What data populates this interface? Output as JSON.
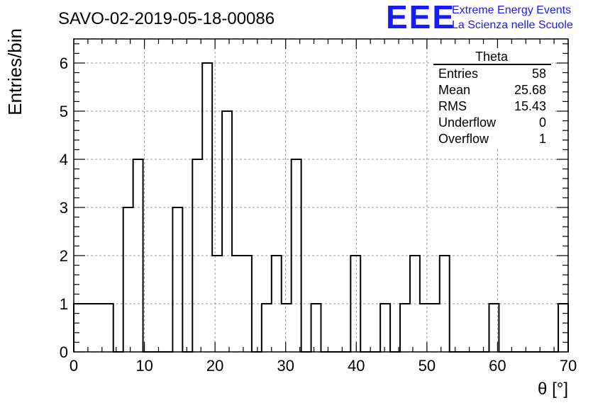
{
  "chart_data": {
    "type": "bar",
    "title": "SAVO-02-2019-05-18-00086",
    "xlabel": "θ [°]",
    "ylabel": "Entries/bin",
    "xlim": [
      0,
      70
    ],
    "ylim": [
      0,
      6.5
    ],
    "x_ticks": [
      0,
      10,
      20,
      30,
      40,
      50,
      60,
      70
    ],
    "y_ticks": [
      0,
      1,
      2,
      3,
      4,
      5,
      6
    ],
    "grid": true,
    "bin_width": 1.4,
    "bin_contents": [
      1,
      1,
      1,
      1,
      0,
      3,
      4,
      0,
      0,
      0,
      3,
      0,
      4,
      6,
      2,
      5,
      2,
      2,
      0,
      1,
      2,
      1,
      4,
      0,
      1,
      0,
      0,
      0,
      2,
      0,
      0,
      1,
      0,
      1,
      2,
      1,
      1,
      2,
      0,
      0,
      0,
      0,
      1,
      0,
      0,
      0,
      0,
      0,
      0,
      1
    ]
  },
  "stats_box": {
    "title": "Theta",
    "rows": [
      {
        "label": "Entries",
        "value": "58"
      },
      {
        "label": "Mean",
        "value": "25.68"
      },
      {
        "label": "RMS",
        "value": "15.43"
      },
      {
        "label": "Underflow",
        "value": "0"
      },
      {
        "label": "Overflow",
        "value": "1"
      }
    ]
  },
  "logo": {
    "text": "EEE",
    "line1": "Extreme Energy Events",
    "line2": "La Scienza nelle Scuole",
    "color": "#1a1aff"
  }
}
